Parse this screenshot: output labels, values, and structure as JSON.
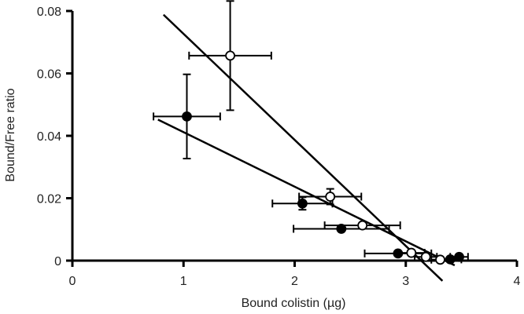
{
  "chart_data": {
    "type": "scatter",
    "title": "",
    "xlabel": "Bound colistin (µg)",
    "ylabel": "Bound/Free ratio",
    "xlim": [
      0,
      4
    ],
    "ylim": [
      0,
      0.08
    ],
    "xticks": [
      "0",
      "1",
      "2",
      "3",
      "4"
    ],
    "yticks": [
      "0",
      "0.02",
      "0.04",
      "0.06",
      "0.08"
    ],
    "grid": false,
    "legend": "none",
    "series": [
      {
        "marker": "filled-circle",
        "color": "#000000",
        "points": [
          {
            "x": 1.03,
            "y": 0.0462,
            "xerr": 0.3,
            "yerr": 0.0135
          },
          {
            "x": 2.07,
            "y": 0.0183,
            "xerr": 0.27,
            "yerr": 0.002
          },
          {
            "x": 2.42,
            "y": 0.0102,
            "xerr": 0.43,
            "yerr": 0
          },
          {
            "x": 2.93,
            "y": 0.0023,
            "xerr": 0.3,
            "yerr": 0
          },
          {
            "x": 3.4,
            "y": 0.0004,
            "xerr": 0.1,
            "yerr": 0
          },
          {
            "x": 3.48,
            "y": 0.0012,
            "xerr": 0.08,
            "yerr": 0
          }
        ],
        "fit_line": {
          "x": [
            0.77,
            3.44
          ],
          "y": [
            0.0452,
            -0.0015
          ]
        }
      },
      {
        "marker": "open-circle",
        "color": "#000000",
        "points": [
          {
            "x": 1.42,
            "y": 0.0657,
            "xerr": 0.37,
            "yerr": 0.0175
          },
          {
            "x": 2.32,
            "y": 0.0205,
            "xerr": 0.28,
            "yerr": 0.0025
          },
          {
            "x": 2.61,
            "y": 0.0113,
            "xerr": 0.34,
            "yerr": 0
          },
          {
            "x": 3.05,
            "y": 0.0025,
            "xerr": 0.12,
            "yerr": 0
          },
          {
            "x": 3.18,
            "y": 0.0012,
            "xerr": 0.1,
            "yerr": 0
          },
          {
            "x": 3.31,
            "y": 0.0003,
            "xerr": 0.08,
            "yerr": 0
          }
        ],
        "fit_line": {
          "x": [
            0.82,
            3.33
          ],
          "y": [
            0.0788,
            -0.0065
          ]
        }
      }
    ]
  }
}
